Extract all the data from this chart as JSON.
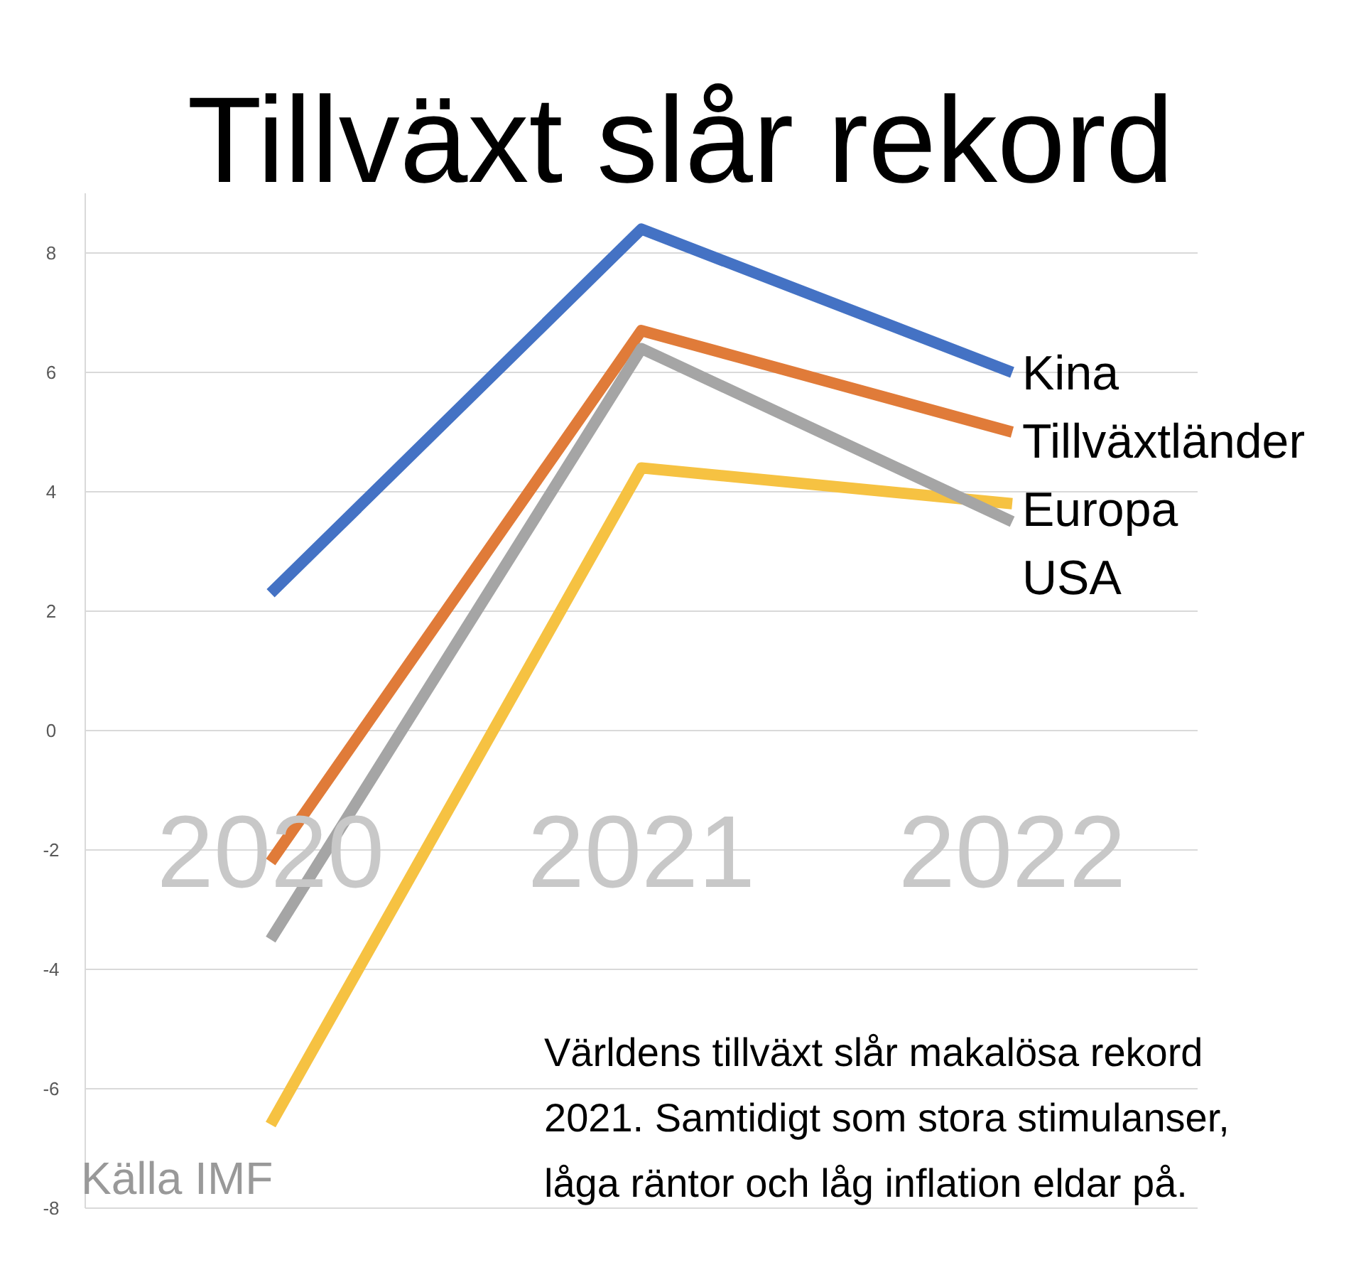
{
  "chart_data": {
    "type": "line",
    "title": "Tillväxt slår rekord",
    "categories": [
      "2020",
      "2021",
      "2022"
    ],
    "series": [
      {
        "name": "Kina",
        "color": "#4472c4",
        "values": [
          2.3,
          8.4,
          6.0
        ]
      },
      {
        "name": "Tillväxtländer",
        "color": "#e07b39",
        "values": [
          -2.2,
          6.7,
          5.0
        ]
      },
      {
        "name": "Europa",
        "color": "#f6c242",
        "values": [
          -6.6,
          4.4,
          3.8
        ]
      },
      {
        "name": "USA",
        "color": "#a5a5a5",
        "values": [
          -3.5,
          6.4,
          3.5
        ]
      }
    ],
    "ylim": [
      -8,
      9
    ],
    "yticks": [
      -8,
      -6,
      -4,
      -2,
      0,
      2,
      4,
      6,
      8
    ],
    "grid": "y",
    "annotations": [
      "Källa IMF",
      "Världens tillväxt slår makalösa rekord 2021. Samtidigt som stora stimulanser, låga räntor och låg inflation eldar på."
    ]
  }
}
